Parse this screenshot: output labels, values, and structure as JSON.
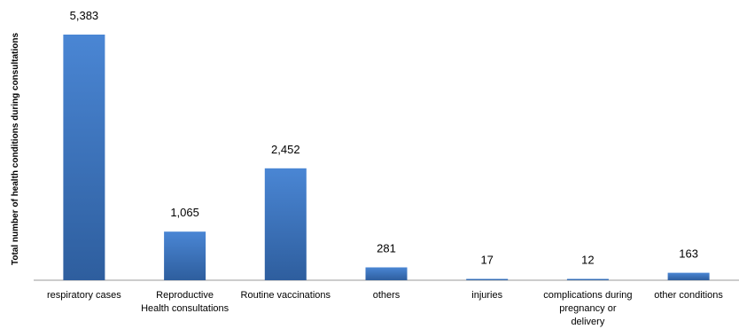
{
  "chart_data": {
    "type": "bar",
    "title": "",
    "xlabel": "",
    "ylabel": "Total number of health conditions during consultations",
    "categories": [
      [
        "respiratory cases"
      ],
      [
        "Reproductive",
        "Health consultations"
      ],
      [
        "Routine vaccinations"
      ],
      [
        "others"
      ],
      [
        "injuries"
      ],
      [
        "complications during",
        "pregnancy or",
        "delivery"
      ],
      [
        "other conditions"
      ]
    ],
    "values": [
      5383,
      1065,
      2452,
      281,
      17,
      12,
      163
    ],
    "value_labels": [
      "5,383",
      "1,065",
      "2,452",
      "281",
      "17",
      "12",
      "163"
    ],
    "ylim": [
      0,
      5383
    ],
    "grid": false,
    "legend": "none",
    "colors": {
      "bar_top": "#4a86d4",
      "bar_bottom": "#2e5e9e",
      "axis": "#9a9a9a"
    }
  }
}
